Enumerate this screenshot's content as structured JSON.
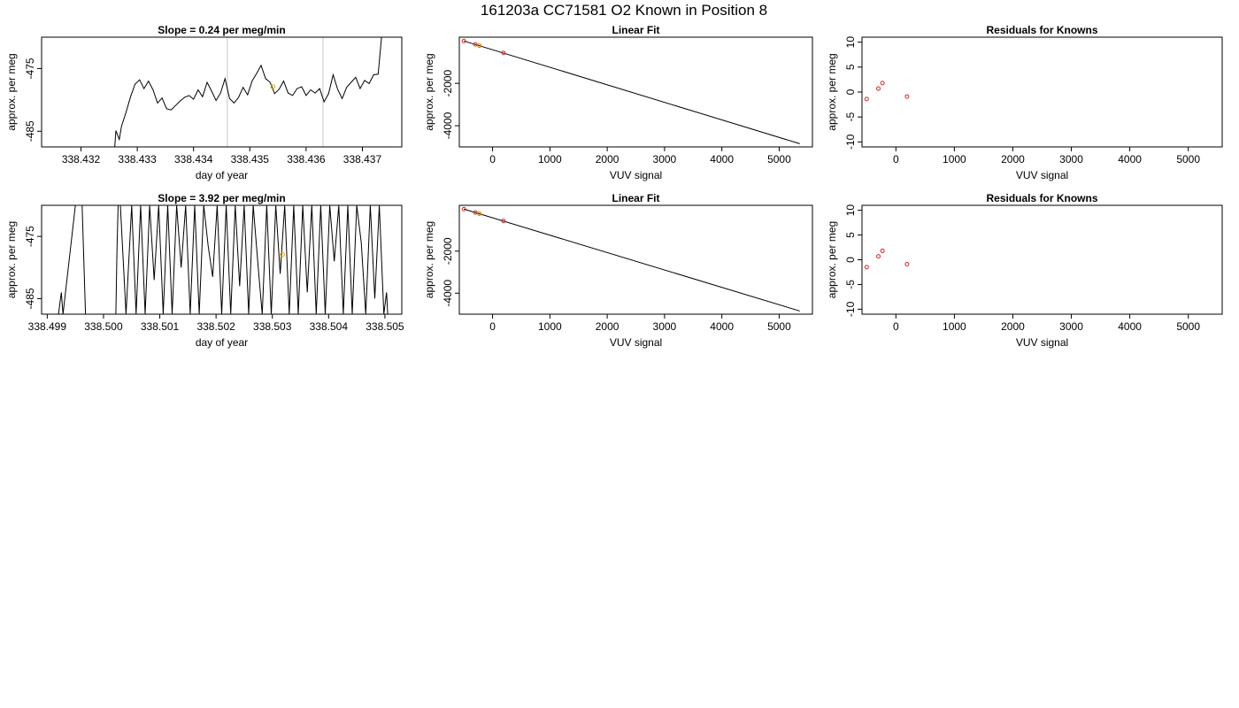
{
  "figure": {
    "title": "161203a     CC71581   O2 Known in Position  8"
  },
  "chart_data": [
    {
      "id": "timeseries-1",
      "type": "line",
      "title": "Slope =  0.24  per meg/min",
      "xlabel": "day of year",
      "ylabel": "approx. per meg",
      "xlim": [
        338.4313,
        338.4377
      ],
      "ylim": [
        -487.5,
        -470.0
      ],
      "xticks": [
        338.432,
        338.433,
        338.434,
        338.435,
        338.436,
        338.437
      ],
      "xtick_labels": [
        "338.432",
        "338.433",
        "338.434",
        "338.435",
        "338.436",
        "338.437"
      ],
      "yticks": [
        -475,
        -485
      ],
      "ytick_labels": [
        "-475",
        "-485"
      ],
      "vlines": [
        338.4346,
        338.4363
      ],
      "vline_color": "#c8c8c8",
      "line_color": "#000000",
      "series": [
        {
          "values": [
            [
              338.4326,
              -487.5
            ],
            [
              338.43262,
              -484.9
            ],
            [
              338.43268,
              -486.3
            ],
            [
              338.43272,
              -484.2
            ],
            [
              338.4328,
              -482.0
            ],
            [
              338.43288,
              -479.5
            ],
            [
              338.43296,
              -477.5
            ],
            [
              338.43304,
              -476.8
            ],
            [
              338.43312,
              -478.2
            ],
            [
              338.4332,
              -477.0
            ],
            [
              338.43328,
              -478.4
            ],
            [
              338.43336,
              -480.5
            ],
            [
              338.43344,
              -479.7
            ],
            [
              338.43352,
              -481.4
            ],
            [
              338.4336,
              -481.6
            ],
            [
              338.43368,
              -480.9
            ],
            [
              338.43376,
              -480.2
            ],
            [
              338.43384,
              -479.6
            ],
            [
              338.43392,
              -479.3
            ],
            [
              338.434,
              -479.9
            ],
            [
              338.43408,
              -478.4
            ],
            [
              338.43416,
              -479.5
            ],
            [
              338.43424,
              -477.2
            ],
            [
              338.43432,
              -478.6
            ],
            [
              338.4344,
              -480.1
            ],
            [
              338.43448,
              -478.9
            ],
            [
              338.43456,
              -476.6
            ],
            [
              338.43464,
              -479.8
            ],
            [
              338.43472,
              -480.5
            ],
            [
              338.4348,
              -479.6
            ],
            [
              338.43488,
              -478.0
            ],
            [
              338.43496,
              -479.2
            ],
            [
              338.43504,
              -477.0
            ],
            [
              338.43512,
              -475.8
            ],
            [
              338.4352,
              -474.5
            ],
            [
              338.43528,
              -476.6
            ],
            [
              338.43536,
              -477.2
            ],
            [
              338.43544,
              -479.0
            ],
            [
              338.43552,
              -478.3
            ],
            [
              338.4356,
              -477.0
            ],
            [
              338.43568,
              -478.9
            ],
            [
              338.43576,
              -479.3
            ],
            [
              338.43584,
              -478.2
            ],
            [
              338.43592,
              -477.9
            ],
            [
              338.436,
              -479.3
            ],
            [
              338.43608,
              -478.4
            ],
            [
              338.43616,
              -478.9
            ],
            [
              338.43624,
              -478.2
            ],
            [
              338.43632,
              -480.3
            ],
            [
              338.4364,
              -479.0
            ],
            [
              338.43648,
              -476.0
            ],
            [
              338.43656,
              -478.3
            ],
            [
              338.43664,
              -479.8
            ],
            [
              338.43672,
              -478.0
            ],
            [
              338.4368,
              -477.2
            ],
            [
              338.43688,
              -476.4
            ],
            [
              338.43696,
              -478.2
            ],
            [
              338.43704,
              -476.9
            ],
            [
              338.43712,
              -477.4
            ],
            [
              338.4372,
              -476.0
            ],
            [
              338.43728,
              -475.9
            ],
            [
              338.43734,
              -470.0
            ]
          ]
        }
      ],
      "marker": {
        "x": 338.43541,
        "y": -477.9,
        "color": "#e69f00"
      }
    },
    {
      "id": "linear-fit-1",
      "type": "scatter",
      "title": "Linear Fit",
      "xlabel": "VUV signal",
      "ylabel": "approx. per meg",
      "xlim": [
        -580,
        5580
      ],
      "ylim": [
        -5000,
        180
      ],
      "xticks": [
        0,
        1000,
        2000,
        3000,
        4000,
        5000
      ],
      "xtick_labels": [
        "0",
        "1000",
        "2000",
        "3000",
        "4000",
        "5000"
      ],
      "yticks": [
        -2000,
        -4000
      ],
      "ytick_labels": [
        "-2000",
        "-4000"
      ],
      "fit_line": [
        [
          -500,
          0
        ],
        [
          5360,
          -4850
        ]
      ],
      "points": [
        [
          -500,
          0
        ],
        [
          -300,
          -160
        ],
        [
          -230,
          -220
        ],
        [
          190,
          -560
        ]
      ],
      "point_color": "#d62728",
      "highlight_points": [
        [
          -230,
          -210
        ]
      ],
      "highlight_color": "#e69f00"
    },
    {
      "id": "residuals-1",
      "type": "scatter",
      "title": "Residuals for Knowns",
      "xlabel": "VUV signal",
      "ylabel": "approx. per meg",
      "xlim": [
        -580,
        5580
      ],
      "ylim": [
        -11,
        11
      ],
      "xticks": [
        0,
        1000,
        2000,
        3000,
        4000,
        5000
      ],
      "xtick_labels": [
        "0",
        "1000",
        "2000",
        "3000",
        "4000",
        "5000"
      ],
      "yticks": [
        10,
        5,
        0,
        -5,
        -10
      ],
      "ytick_labels": [
        "10",
        "5",
        "0",
        "-5",
        "-10"
      ],
      "points": [
        [
          -500,
          -1.4
        ],
        [
          -300,
          0.7
        ],
        [
          -230,
          1.8
        ],
        [
          190,
          -0.9
        ]
      ],
      "point_color": "#d62728"
    },
    {
      "id": "timeseries-2",
      "type": "line",
      "title": "Slope =  3.92  per meg/min",
      "xlabel": "day of year",
      "ylabel": "approx. per meg",
      "xlim": [
        338.4989,
        338.5053
      ],
      "ylim": [
        -487.5,
        -470.0
      ],
      "xticks": [
        338.499,
        338.5,
        338.501,
        338.502,
        338.503,
        338.504,
        338.505
      ],
      "xtick_labels": [
        "338.499",
        "338.500",
        "338.501",
        "338.502",
        "338.503",
        "338.504",
        "338.505"
      ],
      "yticks": [
        -475,
        -485
      ],
      "ytick_labels": [
        "-475",
        "-485"
      ],
      "line_color": "#000000",
      "series": [
        {
          "values": [
            [
              338.4992,
              -487.5
            ],
            [
              338.49925,
              -484.0
            ],
            [
              338.49928,
              -487.5
            ],
            [
              338.4995,
              -470.0
            ],
            [
              338.49962,
              -470.0
            ],
            [
              338.49968,
              -487.5
            ],
            [
              338.50022,
              -487.5
            ],
            [
              338.50024,
              -477.0
            ],
            [
              338.50026,
              -470.0
            ],
            [
              338.5003,
              -470.0
            ],
            [
              338.5004,
              -487.5
            ],
            [
              338.5005,
              -470.0
            ],
            [
              338.50058,
              -487.5
            ],
            [
              338.50066,
              -470.0
            ],
            [
              338.50074,
              -487.5
            ],
            [
              338.50082,
              -470.0
            ],
            [
              338.5009,
              -482.0
            ],
            [
              338.50098,
              -470.0
            ],
            [
              338.50106,
              -487.5
            ],
            [
              338.50114,
              -470.0
            ],
            [
              338.50122,
              -487.5
            ],
            [
              338.5013,
              -470.0
            ],
            [
              338.50138,
              -480.0
            ],
            [
              338.50146,
              -470.0
            ],
            [
              338.50154,
              -487.5
            ],
            [
              338.50162,
              -470.0
            ],
            [
              338.5017,
              -487.5
            ],
            [
              338.50178,
              -470.0
            ],
            [
              338.50186,
              -476.5
            ],
            [
              338.50194,
              -481.5
            ],
            [
              338.50202,
              -470.0
            ],
            [
              338.5021,
              -487.5
            ],
            [
              338.50218,
              -470.0
            ],
            [
              338.50226,
              -487.5
            ],
            [
              338.50234,
              -470.0
            ],
            [
              338.50242,
              -483.0
            ],
            [
              338.5025,
              -470.0
            ],
            [
              338.50258,
              -487.5
            ],
            [
              338.50266,
              -470.0
            ],
            [
              338.50274,
              -479.0
            ],
            [
              338.50282,
              -487.5
            ],
            [
              338.5029,
              -470.0
            ],
            [
              338.50298,
              -487.5
            ],
            [
              338.50306,
              -470.0
            ],
            [
              338.50314,
              -481.0
            ],
            [
              338.50322,
              -470.0
            ],
            [
              338.5033,
              -487.5
            ],
            [
              338.50338,
              -470.0
            ],
            [
              338.50346,
              -487.5
            ],
            [
              338.50354,
              -470.0
            ],
            [
              338.50362,
              -484.0
            ],
            [
              338.5037,
              -470.0
            ],
            [
              338.50378,
              -487.5
            ],
            [
              338.50386,
              -470.0
            ],
            [
              338.50394,
              -487.5
            ],
            [
              338.50402,
              -470.0
            ],
            [
              338.5041,
              -479.0
            ],
            [
              338.50418,
              -470.0
            ],
            [
              338.50426,
              -487.5
            ],
            [
              338.50434,
              -470.0
            ],
            [
              338.50442,
              -487.5
            ],
            [
              338.5045,
              -470.0
            ],
            [
              338.50458,
              -476.0
            ],
            [
              338.50466,
              -487.5
            ],
            [
              338.50474,
              -470.0
            ],
            [
              338.50482,
              -485.0
            ],
            [
              338.5049,
              -470.0
            ],
            [
              338.50498,
              -487.5
            ],
            [
              338.50503,
              -484.0
            ],
            [
              338.50505,
              -487.5
            ]
          ]
        }
      ],
      "marker": {
        "x": 338.50318,
        "y": -477.9,
        "color": "#e69f00"
      }
    },
    {
      "id": "linear-fit-2",
      "type": "scatter",
      "title": "Linear Fit",
      "xlabel": "VUV signal",
      "ylabel": "approx. per meg",
      "xlim": [
        -580,
        5580
      ],
      "ylim": [
        -5000,
        180
      ],
      "xticks": [
        0,
        1000,
        2000,
        3000,
        4000,
        5000
      ],
      "xtick_labels": [
        "0",
        "1000",
        "2000",
        "3000",
        "4000",
        "5000"
      ],
      "yticks": [
        -2000,
        -4000
      ],
      "ytick_labels": [
        "-2000",
        "-4000"
      ],
      "fit_line": [
        [
          -500,
          0
        ],
        [
          5360,
          -4850
        ]
      ],
      "points": [
        [
          -500,
          0
        ],
        [
          -300,
          -160
        ],
        [
          -230,
          -220
        ],
        [
          190,
          -560
        ]
      ],
      "point_color": "#d62728",
      "highlight_points": [
        [
          -230,
          -210
        ]
      ],
      "highlight_color": "#e69f00"
    },
    {
      "id": "residuals-2",
      "type": "scatter",
      "title": "Residuals for Knowns",
      "xlabel": "VUV signal",
      "ylabel": "approx. per meg",
      "xlim": [
        -580,
        5580
      ],
      "ylim": [
        -11,
        11
      ],
      "xticks": [
        0,
        1000,
        2000,
        3000,
        4000,
        5000
      ],
      "xtick_labels": [
        "0",
        "1000",
        "2000",
        "3000",
        "4000",
        "5000"
      ],
      "yticks": [
        10,
        5,
        0,
        -5,
        -10
      ],
      "ytick_labels": [
        "10",
        "5",
        "0",
        "-5",
        "-10"
      ],
      "points": [
        [
          -500,
          -1.5
        ],
        [
          -300,
          0.7
        ],
        [
          -230,
          1.8
        ],
        [
          190,
          -0.9
        ]
      ],
      "point_color": "#d62728"
    }
  ]
}
